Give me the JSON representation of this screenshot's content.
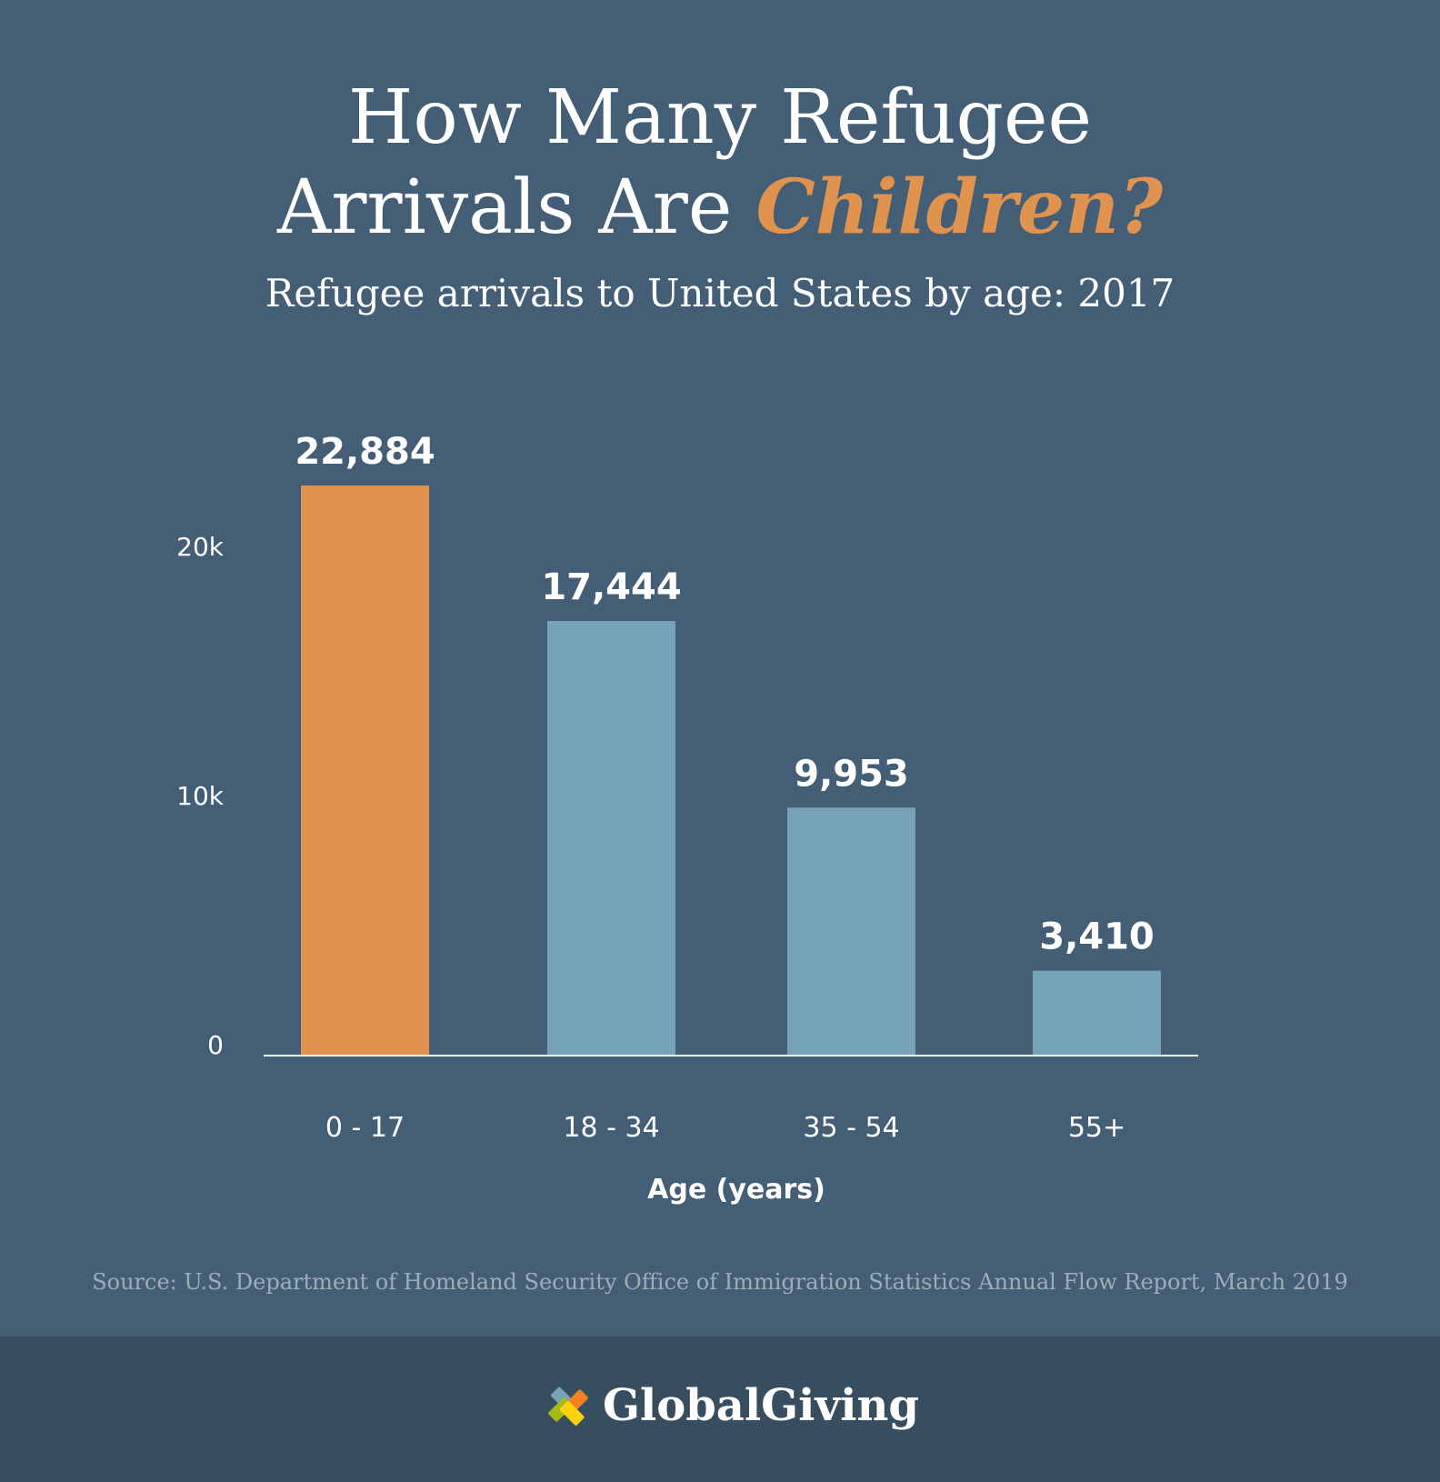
{
  "title": {
    "line1": "How Many Refugee",
    "line2_prefix": "Arrivals Are ",
    "line2_accent": "Children?"
  },
  "subtitle": "Refugee arrivals to United States by age: 2017",
  "chart_data": {
    "type": "bar",
    "categories": [
      "0 - 17",
      "18 - 34",
      "35 - 54",
      "55+"
    ],
    "values": [
      22884,
      17444,
      9953,
      3410
    ],
    "data_labels": [
      "22,884",
      "17,444",
      "9,953",
      "3,410"
    ],
    "xlabel": "Age (years)",
    "ylabel": "",
    "ylim": [
      0,
      25000
    ],
    "yticks": [
      0,
      10000,
      20000
    ],
    "ytick_labels": [
      "0",
      "10k",
      "20k"
    ],
    "grid": false,
    "colors": [
      "#e0934f",
      "#77a3b8",
      "#77a3b8",
      "#77a3b8"
    ]
  },
  "source": "Source: U.S. Department of Homeland Security Office of Immigration Statistics Annual Flow Report, March 2019",
  "footer": {
    "logo_text": "GlobalGiving",
    "logo_colors": [
      "#77a3b8",
      "#f5821f",
      "#a7b915",
      "#fdd20c"
    ]
  }
}
